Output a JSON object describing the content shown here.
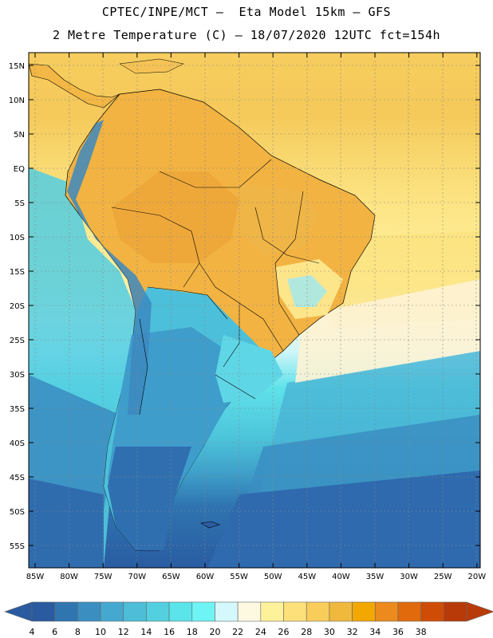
{
  "header": {
    "line1": "CPTEC/INPE/MCT –  Eta Model 15km – GFS",
    "line2": "2 Metre Temperature (C) – 18/07/2020 12UTC fct=154h"
  },
  "axes": {
    "lat_labels": [
      "15N",
      "10N",
      "5N",
      "EQ",
      "5S",
      "10S",
      "15S",
      "20S",
      "25S",
      "30S",
      "35S",
      "40S",
      "45S",
      "50S",
      "55S"
    ],
    "lon_labels": [
      "85W",
      "80W",
      "75W",
      "70W",
      "65W",
      "60W",
      "55W",
      "50W",
      "45W",
      "40W",
      "35W",
      "30W",
      "25W",
      "20W"
    ]
  },
  "colorbar": {
    "ticks": [
      "4",
      "6",
      "8",
      "10",
      "12",
      "14",
      "16",
      "18",
      "20",
      "22",
      "24",
      "26",
      "28",
      "30",
      "32",
      "34",
      "36",
      "38"
    ],
    "colors": [
      "#2a5aa0",
      "#2f76b0",
      "#3a8fc0",
      "#45a9cf",
      "#4dbdd8",
      "#52d0e0",
      "#5be4ea",
      "#6ef4f4",
      "#d4f8fc",
      "#fdf8e0",
      "#fdf19a",
      "#fde07a",
      "#f8cd5a",
      "#f0b83c",
      "#f2a800",
      "#ec8a1e",
      "#e06a0c",
      "#cf4c06",
      "#b83a08"
    ],
    "low_arrow_color": "#2a5aa0",
    "high_arrow_color": "#b83a08"
  }
}
